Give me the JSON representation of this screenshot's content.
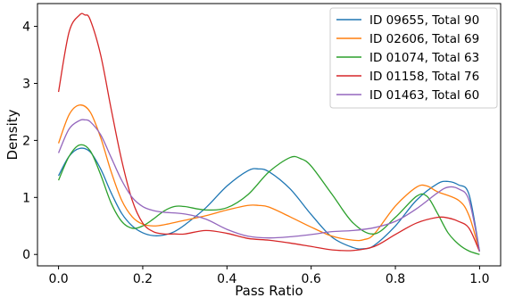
{
  "chart_data": {
    "type": "line",
    "title": "",
    "xlabel": "Pass Ratio",
    "ylabel": "Density",
    "xlim": [
      -0.05,
      1.05
    ],
    "ylim": [
      -0.2,
      4.4
    ],
    "xticks": [
      0.0,
      0.2,
      0.4,
      0.6,
      0.8,
      1.0
    ],
    "xtick_labels": [
      "0.0",
      "0.2",
      "0.4",
      "0.6",
      "0.8",
      "1.0"
    ],
    "yticks": [
      0,
      1,
      2,
      3,
      4
    ],
    "ytick_labels": [
      "0",
      "1",
      "2",
      "3",
      "4"
    ],
    "grid": false,
    "legend_position": "top-right",
    "series": [
      {
        "name": "ID 09655, Total 90",
        "color": "#1f77b4",
        "x": [
          0.0,
          0.025,
          0.05,
          0.075,
          0.1,
          0.125,
          0.15,
          0.175,
          0.2,
          0.225,
          0.25,
          0.275,
          0.3,
          0.35,
          0.4,
          0.45,
          0.475,
          0.5,
          0.55,
          0.6,
          0.65,
          0.7,
          0.725,
          0.75,
          0.8,
          0.85,
          0.9,
          0.925,
          0.95,
          0.975,
          1.0
        ],
        "y": [
          1.38,
          1.72,
          1.86,
          1.8,
          1.5,
          1.08,
          0.72,
          0.5,
          0.38,
          0.33,
          0.34,
          0.4,
          0.52,
          0.82,
          1.2,
          1.47,
          1.5,
          1.45,
          1.15,
          0.7,
          0.3,
          0.12,
          0.1,
          0.16,
          0.5,
          0.95,
          1.24,
          1.28,
          1.22,
          1.05,
          0.05
        ]
      },
      {
        "name": "ID 02606, Total 69",
        "color": "#ff7f0e",
        "x": [
          0.0,
          0.025,
          0.05,
          0.075,
          0.1,
          0.125,
          0.15,
          0.175,
          0.2,
          0.225,
          0.25,
          0.3,
          0.35,
          0.4,
          0.45,
          0.475,
          0.5,
          0.55,
          0.6,
          0.65,
          0.7,
          0.725,
          0.75,
          0.8,
          0.85,
          0.875,
          0.9,
          0.95,
          0.975,
          1.0
        ],
        "y": [
          1.95,
          2.45,
          2.62,
          2.5,
          2.05,
          1.45,
          0.95,
          0.66,
          0.53,
          0.5,
          0.52,
          0.6,
          0.68,
          0.78,
          0.86,
          0.86,
          0.83,
          0.66,
          0.48,
          0.32,
          0.25,
          0.26,
          0.36,
          0.85,
          1.18,
          1.2,
          1.1,
          0.95,
          0.68,
          0.05
        ]
      },
      {
        "name": "ID 01074, Total 63",
        "color": "#2ca02c",
        "x": [
          0.0,
          0.025,
          0.05,
          0.075,
          0.1,
          0.125,
          0.15,
          0.175,
          0.2,
          0.225,
          0.25,
          0.275,
          0.3,
          0.35,
          0.4,
          0.45,
          0.5,
          0.55,
          0.575,
          0.6,
          0.65,
          0.7,
          0.75,
          0.8,
          0.85,
          0.875,
          0.9,
          0.925,
          0.95,
          0.975,
          1.0
        ],
        "y": [
          1.3,
          1.72,
          1.92,
          1.82,
          1.4,
          0.9,
          0.58,
          0.46,
          0.5,
          0.62,
          0.76,
          0.84,
          0.84,
          0.78,
          0.82,
          1.05,
          1.45,
          1.7,
          1.68,
          1.55,
          1.05,
          0.55,
          0.36,
          0.65,
          1.02,
          1.02,
          0.72,
          0.38,
          0.18,
          0.06,
          0.0
        ]
      },
      {
        "name": "ID 01158, Total 76",
        "color": "#d62728",
        "x": [
          0.0,
          0.025,
          0.05,
          0.0625,
          0.075,
          0.1,
          0.125,
          0.15,
          0.175,
          0.2,
          0.225,
          0.25,
          0.275,
          0.3,
          0.35,
          0.4,
          0.45,
          0.5,
          0.55,
          0.6,
          0.65,
          0.7,
          0.75,
          0.8,
          0.85,
          0.9,
          0.925,
          0.95,
          0.975,
          1.0
        ],
        "y": [
          2.85,
          3.9,
          4.2,
          4.2,
          4.12,
          3.5,
          2.55,
          1.65,
          0.95,
          0.55,
          0.4,
          0.36,
          0.36,
          0.36,
          0.42,
          0.37,
          0.28,
          0.25,
          0.2,
          0.14,
          0.08,
          0.07,
          0.14,
          0.35,
          0.55,
          0.65,
          0.64,
          0.58,
          0.46,
          0.05
        ]
      },
      {
        "name": "ID 01463, Total 60",
        "color": "#9467bd",
        "x": [
          0.0,
          0.025,
          0.05,
          0.0625,
          0.075,
          0.1,
          0.125,
          0.15,
          0.175,
          0.2,
          0.225,
          0.25,
          0.3,
          0.35,
          0.4,
          0.45,
          0.5,
          0.55,
          0.6,
          0.65,
          0.7,
          0.75,
          0.8,
          0.85,
          0.9,
          0.925,
          0.95,
          0.975,
          1.0
        ],
        "y": [
          1.78,
          2.2,
          2.35,
          2.36,
          2.33,
          2.1,
          1.7,
          1.3,
          1.0,
          0.84,
          0.77,
          0.74,
          0.71,
          0.62,
          0.44,
          0.32,
          0.29,
          0.31,
          0.35,
          0.4,
          0.42,
          0.47,
          0.58,
          0.8,
          1.08,
          1.18,
          1.15,
          0.95,
          0.05
        ]
      }
    ]
  }
}
